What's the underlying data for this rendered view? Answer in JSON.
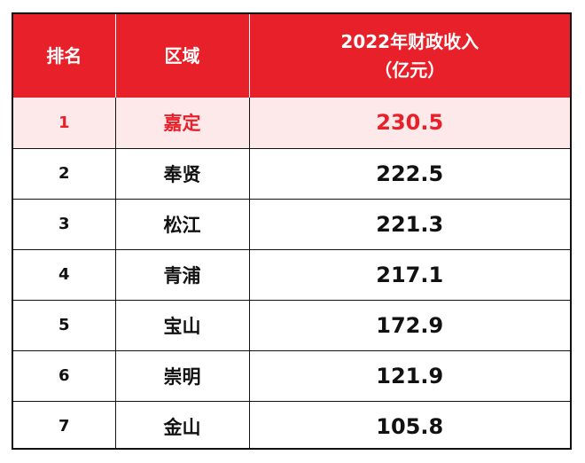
{
  "table": {
    "header": {
      "rank": "排名",
      "area": "区域",
      "revenue_line1": "2022年财政收入",
      "revenue_line2": "（亿元）"
    },
    "rows": [
      {
        "rank": "1",
        "area": "嘉定",
        "revenue": "230.5",
        "highlight": true
      },
      {
        "rank": "2",
        "area": "奉贤",
        "revenue": "222.5",
        "highlight": false
      },
      {
        "rank": "3",
        "area": "松江",
        "revenue": "221.3",
        "highlight": false
      },
      {
        "rank": "4",
        "area": "青浦",
        "revenue": "217.1",
        "highlight": false
      },
      {
        "rank": "5",
        "area": "宝山",
        "revenue": "172.9",
        "highlight": false
      },
      {
        "rank": "6",
        "area": "崇明",
        "revenue": "121.9",
        "highlight": false
      },
      {
        "rank": "7",
        "area": "金山",
        "revenue": "105.8",
        "highlight": false
      }
    ],
    "colors": {
      "header_bg": "#e8202a",
      "header_text": "#ffffff",
      "highlight_bg": "#fde9ea",
      "highlight_text": "#e8202a",
      "border": "#111111"
    }
  }
}
